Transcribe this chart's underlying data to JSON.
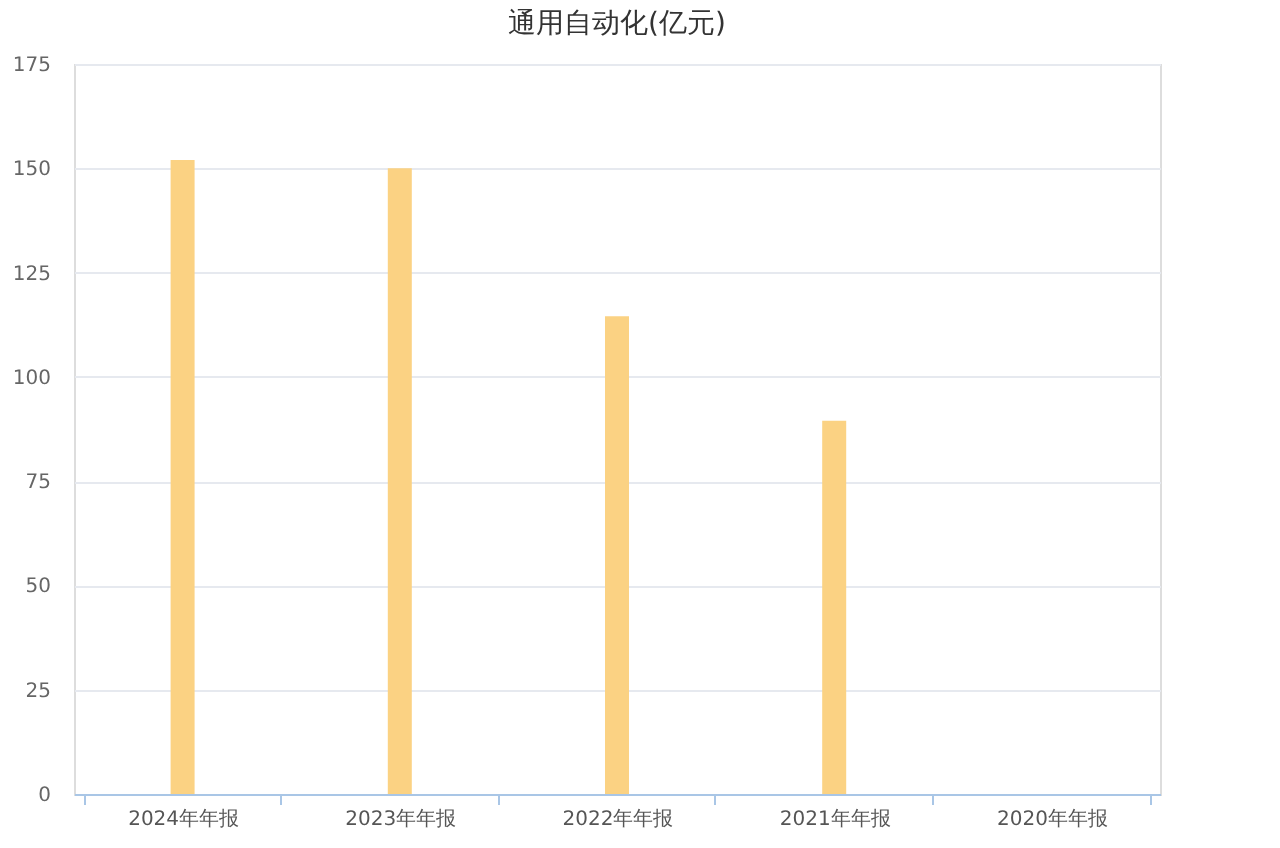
{
  "chart_data": {
    "type": "bar",
    "title": "通用自动化(亿元)",
    "categories": [
      "2024年年报",
      "2023年年报",
      "2022年年报",
      "2021年年报",
      "2020年年报"
    ],
    "values": [
      152,
      150,
      114.5,
      89.5,
      null
    ],
    "color": "#fbd283",
    "ylim": [
      0,
      175
    ],
    "yticks": [
      0,
      25,
      50,
      75,
      100,
      125,
      150,
      175
    ],
    "grid": "y"
  }
}
